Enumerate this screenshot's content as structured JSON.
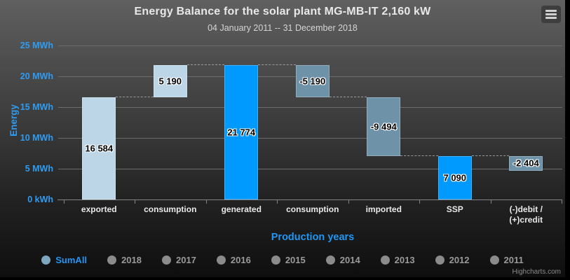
{
  "header": {
    "title": "Energy Balance for the solar plant MG-MB-IT 2,160 kW",
    "subtitle": "04 January 2011 -- 31 December 2018",
    "menu_icon": "hamburger-icon"
  },
  "chart_data": {
    "type": "bar",
    "variant": "waterfall",
    "title": "Energy Balance for the solar plant MG-MB-IT 2,160 kW",
    "subtitle": "04 January 2011 -- 31 December 2018",
    "xlabel": "Production years",
    "ylabel": "Energy",
    "ylim": [
      0,
      25
    ],
    "grid": true,
    "legend_position": "bottom",
    "yticks": [
      {
        "value": 25,
        "label": "25 MWh"
      },
      {
        "value": 20,
        "label": "20 MWh"
      },
      {
        "value": 15,
        "label": "15 MWh"
      },
      {
        "value": 10,
        "label": "10 MWh"
      },
      {
        "value": 5,
        "label": "5 MWh"
      },
      {
        "value": 0,
        "label": "0 kWh"
      }
    ],
    "categories": [
      "exported",
      "consumption",
      "generated",
      "consumption",
      "imported",
      "SSP",
      "(-)debit / (+)credit"
    ],
    "values": [
      16584,
      5190,
      21774,
      -5190,
      -9494,
      7090,
      -2404
    ],
    "value_labels": [
      "16 584",
      "5 190",
      "21 774",
      "-5 190",
      "-9 494",
      "7 090",
      "-2 404"
    ],
    "bar_ranges_mwh": [
      [
        0,
        16.584
      ],
      [
        16.584,
        21.774
      ],
      [
        0,
        21.774
      ],
      [
        16.584,
        21.774
      ],
      [
        7.09,
        16.584
      ],
      [
        0,
        7.09
      ],
      [
        4.686,
        7.09
      ]
    ],
    "bar_color_keys": [
      "pale",
      "pale",
      "bright",
      "slate",
      "slate",
      "bright",
      "slate"
    ],
    "connector_levels_mwh": [
      16.584,
      21.774,
      21.774,
      16.584,
      7.09,
      7.09
    ],
    "colors": {
      "pale": "#bcd6e8",
      "bright": "#0099fe",
      "slate": "#6e92a8",
      "axis_text": "#2f9cf2",
      "grid": "#6c6c6c",
      "category_text": "#e8e8e8",
      "legend_active_text": "#2196f3",
      "legend_inactive_text": "#9a9a9a",
      "legend_marker_active": "#7fa6bf",
      "legend_marker_inactive": "#8b8b8b"
    },
    "legend": {
      "items": [
        {
          "label": "SumAll",
          "active": true
        },
        {
          "label": "2018",
          "active": false
        },
        {
          "label": "2017",
          "active": false
        },
        {
          "label": "2016",
          "active": false
        },
        {
          "label": "2015",
          "active": false
        },
        {
          "label": "2014",
          "active": false
        },
        {
          "label": "2013",
          "active": false
        },
        {
          "label": "2012",
          "active": false
        },
        {
          "label": "2011",
          "active": false
        }
      ]
    }
  },
  "credits": {
    "label": "Highcharts.com"
  }
}
